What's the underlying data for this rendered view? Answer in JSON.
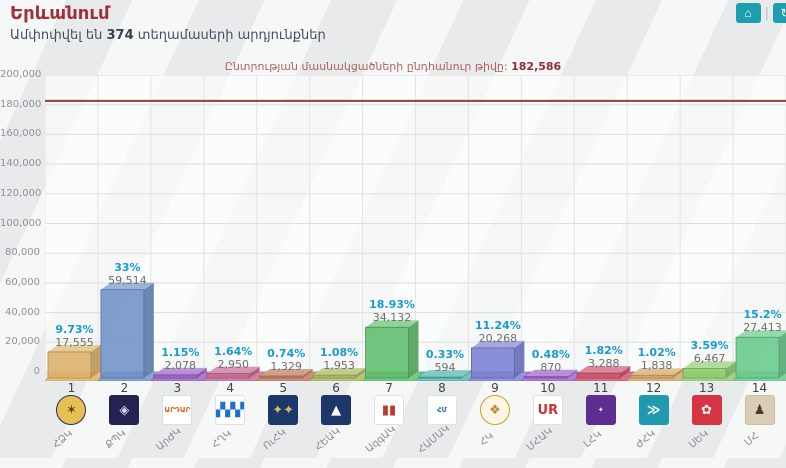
{
  "header": {
    "title": "Երևանում",
    "subtitle": {
      "prefix": "Ամփոփվել են",
      "count": "374",
      "suffix": "տեղամասերի արդյունքներ"
    },
    "buttons": {
      "home_glyph": "⌂",
      "refresh_glyph": "↻"
    }
  },
  "note": {
    "label": "Ընտրության մասնակցածների ընդհանուր թիվը:",
    "value": "182,586"
  },
  "chart_data": {
    "type": "bar",
    "title": "Երևանում",
    "xlabel": "",
    "ylabel": "",
    "ylim": [
      0,
      200000
    ],
    "ytick_step": 20000,
    "ytick_labels": [
      "0",
      "20,000",
      "40,000",
      "60,000",
      "80,000",
      "100,000",
      "120,000",
      "140,000",
      "160,000",
      "180,000",
      "200,000"
    ],
    "grid": true,
    "legend": "none",
    "threshold": {
      "value": 182586,
      "display": "182,586",
      "color": "#9c3a3a"
    },
    "categories": [
      "1",
      "2",
      "3",
      "4",
      "5",
      "6",
      "7",
      "8",
      "9",
      "10",
      "11",
      "12",
      "13",
      "14"
    ],
    "values": [
      17555,
      59514,
      2078,
      2950,
      1329,
      1953,
      34132,
      594,
      20268,
      870,
      3288,
      1838,
      6467,
      27413
    ],
    "bars": [
      {
        "num": "1",
        "abbr": "ՀՁԿ",
        "pct": "9.73%",
        "votes": "17,555",
        "value": 17555,
        "color": "#dcb269",
        "logo": {
          "name": "party-1-round-gold-seal",
          "shape": "circle",
          "bg": "#e7c054",
          "fg": "#584410",
          "glyph": "✶",
          "border": "#2e2c55"
        }
      },
      {
        "num": "2",
        "abbr": "ՔՊԿ",
        "pct": "33%",
        "votes": "59,514",
        "value": 59514,
        "color": "#6e92c7",
        "logo": {
          "name": "party-2-navy-emblem",
          "shape": "square",
          "bg": "#232250",
          "fg": "#cfd3ee",
          "glyph": "◈",
          "border": "#232250"
        }
      },
      {
        "num": "3",
        "abbr": "ԱրԺԿ",
        "pct": "1.15%",
        "votes": "2,078",
        "value": 2078,
        "color": "#9b63c3",
        "logo": {
          "name": "party-3-ardar-orange-text",
          "shape": "square",
          "bg": "#ffffff",
          "fg": "#e2641e",
          "glyph": "ԱՐԴԱՐ",
          "border": "#dddddd",
          "small": true
        }
      },
      {
        "num": "4",
        "abbr": "ՀՂԿ",
        "pct": "1.64%",
        "votes": "2,950",
        "value": 2950,
        "color": "#c56b93",
        "logo": {
          "name": "party-4-blue-stripes",
          "shape": "square",
          "bg": "#ffffff",
          "fg": "#1f6fd0",
          "glyph": "▞▞▞",
          "border": "#e0e0e0"
        }
      },
      {
        "num": "5",
        "abbr": "ՈւՀԿ",
        "pct": "0.74%",
        "votes": "1,329",
        "value": 1329,
        "color": "#c17a60",
        "logo": {
          "name": "party-5-gold-lions-navy",
          "shape": "square",
          "bg": "#1c3868",
          "fg": "#d8b860",
          "glyph": "✦✦",
          "border": "#1c3868"
        }
      },
      {
        "num": "6",
        "abbr": "ՀԵԱԿ",
        "pct": "1.08%",
        "votes": "1,953",
        "value": 1953,
        "color": "#a9b75f",
        "logo": {
          "name": "party-6-mountain-stars-navy",
          "shape": "square",
          "bg": "#1c3868",
          "fg": "#ffffff",
          "glyph": "▲",
          "border": "#1c3868"
        }
      },
      {
        "num": "7",
        "abbr": "ԱզգԱԿ",
        "pct": "18.93%",
        "votes": "34,132",
        "value": 34132,
        "color": "#5ebd6d",
        "logo": {
          "name": "party-7-color-bars",
          "shape": "square",
          "bg": "#ffffff",
          "fg": "#c0392b",
          "glyph": "▮▮",
          "border": "#e0e0e0"
        }
      },
      {
        "num": "8",
        "abbr": "ՀԱՄԱԿ",
        "pct": "0.33%",
        "votes": "594",
        "value": 594,
        "color": "#54b6ac",
        "logo": {
          "name": "party-8-blue-sketch",
          "shape": "square",
          "bg": "#ffffff",
          "fg": "#2a6db5",
          "glyph": "ՀՄ",
          "border": "#e0e0e0",
          "small": true
        }
      },
      {
        "num": "9",
        "abbr": "ՀԿ",
        "pct": "11.24%",
        "votes": "20,268",
        "value": 20268,
        "color": "#7b80d2",
        "logo": {
          "name": "party-9-gold-round-ornament",
          "shape": "circle",
          "bg": "#fdf6e4",
          "fg": "#b58a2a",
          "glyph": "❖",
          "border": "#c9a227"
        }
      },
      {
        "num": "10",
        "abbr": "ՄՀԱԿ",
        "pct": "0.48%",
        "votes": "870",
        "value": 870,
        "color": "#9d64ca",
        "logo": {
          "name": "party-10-ur-letters",
          "shape": "square",
          "bg": "#ffffff",
          "fg": "#cc3333",
          "glyph": "UR",
          "border": "#e0e0e0"
        }
      },
      {
        "num": "11",
        "abbr": "ԼՀԿ",
        "pct": "1.82%",
        "votes": "3,288",
        "value": 3288,
        "color": "#cb5671",
        "logo": {
          "name": "party-11-purple-tile",
          "shape": "square",
          "bg": "#5e2d91",
          "fg": "#ffffff",
          "glyph": "✦",
          "border": "#5e2d91",
          "small": true
        }
      },
      {
        "num": "12",
        "abbr": "ԺՀԿ",
        "pct": "1.02%",
        "votes": "1,838",
        "value": 1838,
        "color": "#d3a565",
        "logo": {
          "name": "party-12-teal-arrows",
          "shape": "square",
          "bg": "#1f9aaf",
          "fg": "#ffffff",
          "glyph": "≫",
          "border": "#1f9aaf"
        }
      },
      {
        "num": "13",
        "abbr": "ՍԵԿ",
        "pct": "3.59%",
        "votes": "6,467",
        "value": 6467,
        "color": "#8fcc6f",
        "logo": {
          "name": "party-13-red-ornament",
          "shape": "square",
          "bg": "#d63445",
          "fg": "#ffffff",
          "glyph": "✿",
          "border": "#d63445"
        }
      },
      {
        "num": "14",
        "abbr": "ՄՀ",
        "pct": "15.2%",
        "votes": "27,413",
        "value": 27413,
        "color": "#66c98b",
        "logo": {
          "name": "party-14-statue-beige",
          "shape": "square",
          "bg": "#d9cdb6",
          "fg": "#4a3b28",
          "glyph": "♟",
          "border": "#c8bca2"
        }
      }
    ]
  }
}
